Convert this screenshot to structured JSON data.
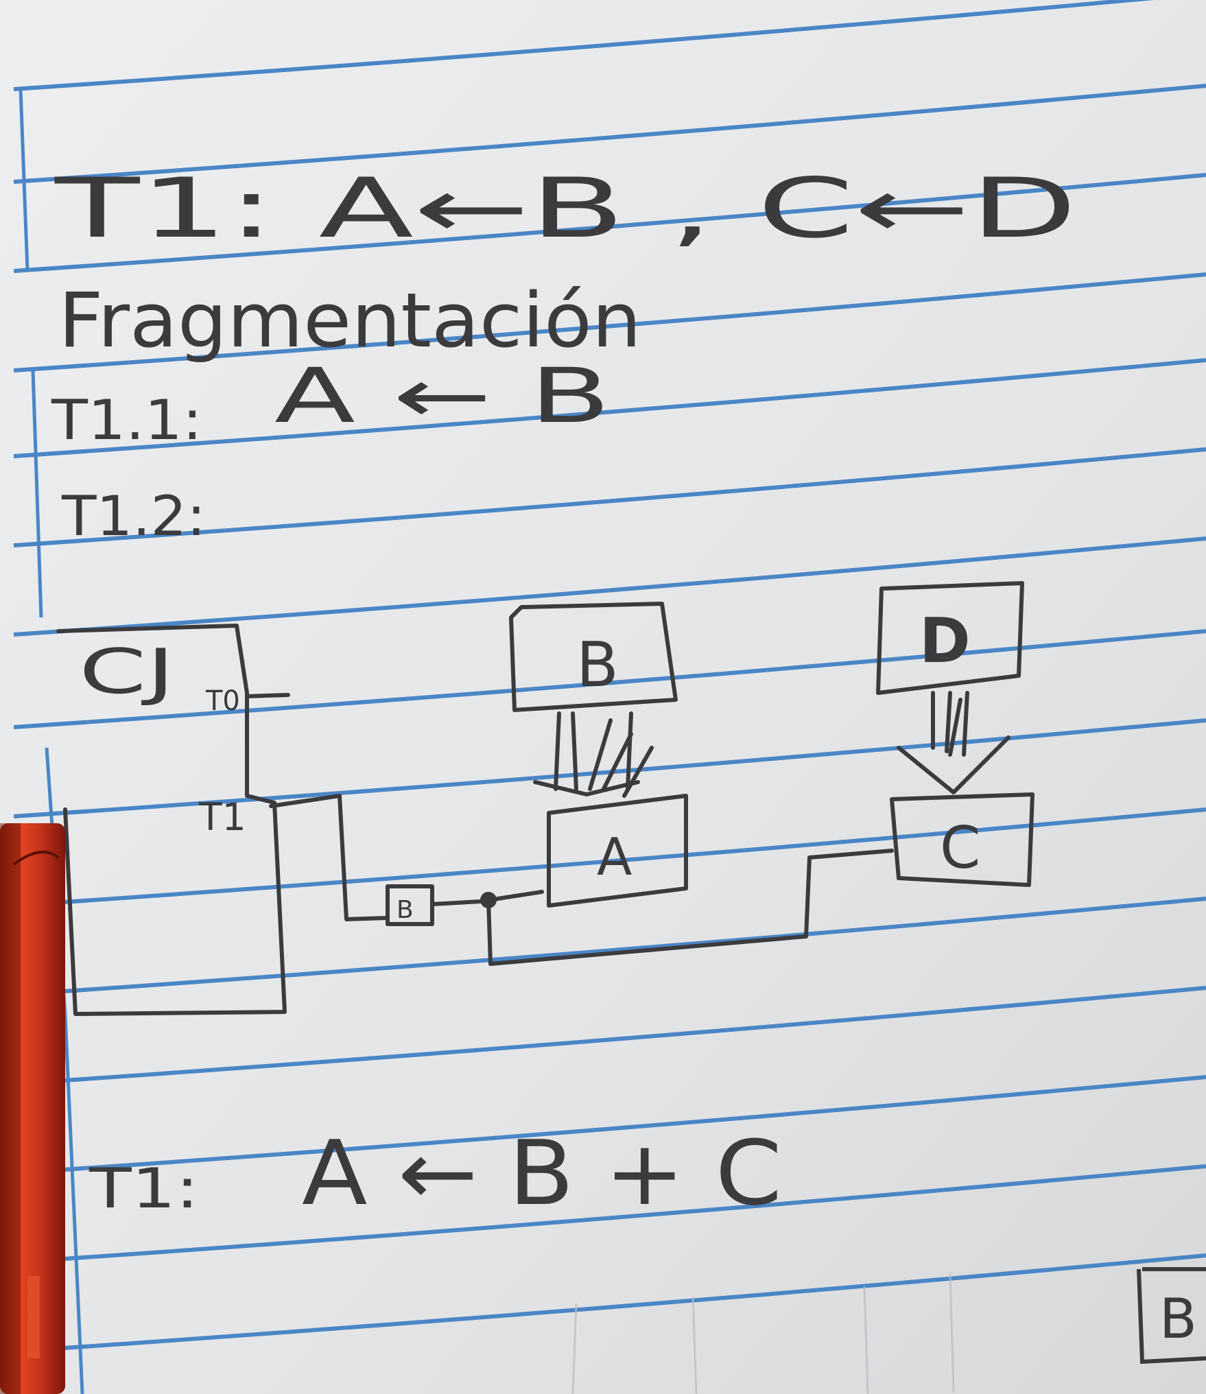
{
  "notes": {
    "line1": "T1: A←B , C←D",
    "heading": "Fragmentación",
    "line2_label": "T1.1:",
    "line2_expr": "A ← B",
    "line3_label": "T1.2:",
    "bottom_label": "T1:",
    "bottom_expr": "A ← B + C"
  },
  "diagram": {
    "cpu_label": "CJ",
    "t0_label": "T0",
    "t1_label": "T1",
    "box_b": "B",
    "box_a": "A",
    "box_d": "D",
    "box_c": "C",
    "adder_label": "B",
    "corner_box": "B"
  },
  "colors": {
    "paper": "#e6e8ea",
    "rule_line": "#4a86c6",
    "ink": "#3b3b3e",
    "pen_body": "#c8341c"
  }
}
